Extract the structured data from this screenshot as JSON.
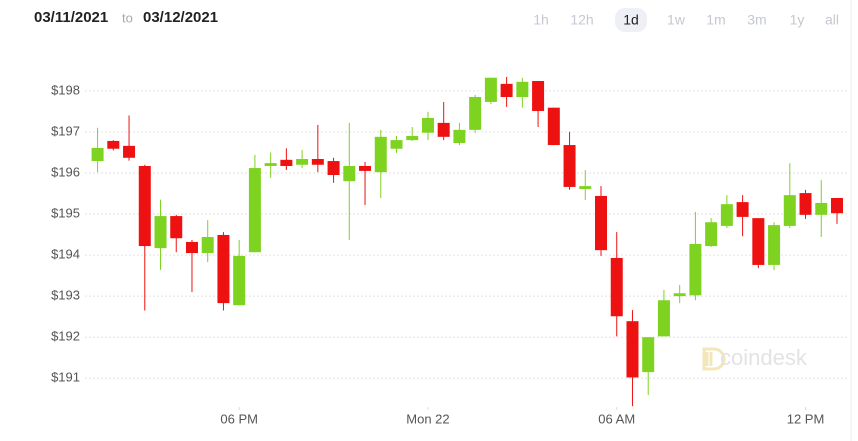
{
  "chart_data": {
    "type": "candlestick",
    "date_range": {
      "from": "03/11/2021",
      "separator": "to",
      "to": "03/12/2021"
    },
    "ranges": [
      "1h",
      "12h",
      "1d",
      "1w",
      "1m",
      "3m",
      "1y",
      "all"
    ],
    "selected_range": "1d",
    "watermark": "coindesk",
    "up_color": "#7ed321",
    "down_color": "#ee1111",
    "grid": true,
    "x": [
      13.5,
      14,
      14.5,
      15,
      15.5,
      16,
      16.5,
      17,
      17.5,
      18,
      18.5,
      19,
      19.5,
      20,
      20.5,
      21,
      21.5,
      22,
      22.5,
      23,
      23.5,
      24,
      24.5,
      25,
      25.5,
      26,
      26.5,
      27,
      27.5,
      28,
      28.5,
      29,
      29.5,
      30,
      30.5,
      31,
      31.5,
      32,
      32.5,
      33,
      33.5,
      34,
      34.5,
      35,
      35.5,
      36,
      36.5,
      37
    ],
    "open": [
      196.29,
      196.78,
      196.66,
      196.17,
      194.17,
      194.95,
      194.32,
      194.05,
      194.49,
      192.78,
      194.07,
      196.17,
      196.32,
      196.2,
      196.34,
      196.29,
      195.8,
      196.17,
      196.02,
      196.59,
      196.8,
      196.98,
      197.22,
      196.73,
      197.05,
      197.73,
      198.17,
      197.85,
      198.24,
      197.59,
      196.68,
      195.61,
      195.44,
      193.93,
      192.39,
      191.15,
      192.02,
      193.0,
      193.02,
      194.22,
      194.71,
      195.29,
      194.9,
      193.76,
      194.71,
      195.51,
      194.98,
      195.39
    ],
    "high": [
      197.1,
      196.8,
      197.4,
      196.2,
      195.35,
      194.98,
      194.37,
      194.85,
      194.56,
      194.37,
      196.44,
      196.5,
      196.6,
      196.56,
      197.17,
      196.37,
      197.22,
      196.27,
      197.05,
      196.9,
      197.12,
      197.49,
      197.73,
      197.22,
      197.9,
      198.32,
      198.34,
      198.32,
      198.24,
      197.59,
      197.0,
      196.07,
      195.68,
      194.56,
      192.66,
      192.0,
      193.15,
      193.27,
      195.05,
      194.9,
      195.46,
      195.46,
      194.9,
      194.8,
      196.24,
      195.59,
      195.83,
      195.39
    ],
    "low": [
      196.02,
      196.55,
      196.3,
      192.65,
      193.64,
      194.07,
      193.1,
      193.83,
      192.65,
      192.78,
      194.07,
      195.88,
      196.07,
      196.12,
      196.02,
      195.76,
      194.37,
      195.22,
      195.39,
      196.49,
      196.78,
      196.8,
      196.8,
      196.68,
      196.98,
      197.68,
      197.61,
      197.59,
      197.12,
      196.68,
      195.59,
      195.34,
      193.98,
      192.02,
      190.32,
      190.59,
      192.02,
      192.83,
      192.9,
      194.2,
      194.66,
      194.46,
      193.68,
      193.63,
      194.66,
      194.88,
      194.44,
      194.76
    ],
    "close": [
      196.61,
      196.59,
      196.37,
      194.22,
      194.95,
      194.41,
      194.05,
      194.44,
      192.83,
      193.98,
      196.12,
      196.24,
      196.17,
      196.34,
      196.2,
      195.95,
      196.17,
      196.05,
      196.88,
      196.8,
      196.9,
      197.34,
      196.88,
      197.05,
      197.85,
      198.32,
      197.85,
      198.22,
      197.51,
      196.68,
      195.66,
      195.68,
      194.12,
      192.51,
      191.02,
      192.0,
      192.9,
      193.07,
      194.27,
      194.8,
      195.24,
      194.93,
      193.76,
      194.73,
      195.46,
      194.98,
      195.27,
      195.02
    ],
    "xlim": [
      13.1,
      37.35
    ],
    "xticks": [
      {
        "value": 18,
        "label": "06 PM"
      },
      {
        "value": 24,
        "label": "Mon 22"
      },
      {
        "value": 30,
        "label": "06 AM"
      },
      {
        "value": 36,
        "label": "12 PM"
      }
    ],
    "ylim": [
      190.3,
      198.8
    ],
    "yticks": [
      {
        "value": 191,
        "label": "$191"
      },
      {
        "value": 192,
        "label": "$192"
      },
      {
        "value": 193,
        "label": "$193"
      },
      {
        "value": 194,
        "label": "$194"
      },
      {
        "value": 195,
        "label": "$195"
      },
      {
        "value": 196,
        "label": "$196"
      },
      {
        "value": 197,
        "label": "$197"
      },
      {
        "value": 198,
        "label": "$198"
      }
    ]
  }
}
